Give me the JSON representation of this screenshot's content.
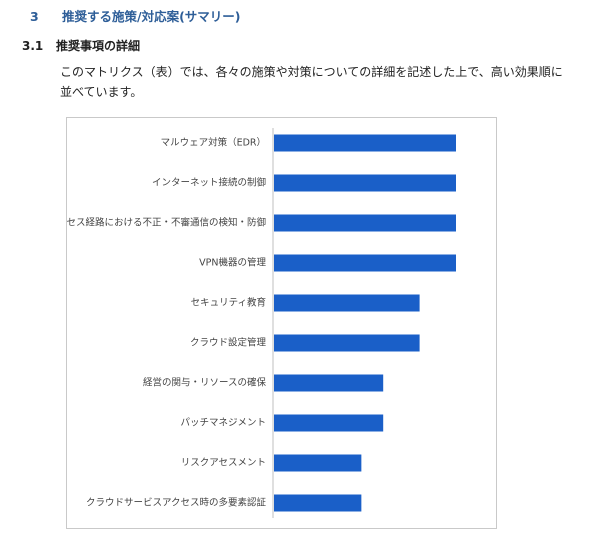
{
  "section": {
    "number": "3",
    "title": "推奨する施策/対応案(サマリー)"
  },
  "subsection": {
    "number": "3.1",
    "title": "推奨事項の詳細"
  },
  "paragraph": "このマトリクス（表）では、各々の施策や対策についての詳細を記述した上で、高い効果順に並べています。",
  "colors": {
    "bar": "#1a5fc8",
    "heading": "#2e5e98",
    "axis": "#bfbfbf"
  },
  "chart_data": {
    "type": "bar",
    "orientation": "horizontal",
    "categories": [
      "マルウェア対策（EDR）",
      "インターネット接続の制御",
      "アクセス経路における不正・不審通信の検知・防御",
      "VPN機器の管理",
      "セキュリティ教育",
      "クラウド設定管理",
      "経営の関与・リソースの確保",
      "パッチマネジメント",
      "リスクアセスメント",
      "クラウドサービスアクセス時の多要素認証"
    ],
    "values": [
      5,
      5,
      5,
      5,
      4,
      4,
      3,
      3,
      2.4,
      2.4
    ],
    "xlim": [
      0,
      5
    ],
    "grid": false,
    "legend": "none"
  }
}
